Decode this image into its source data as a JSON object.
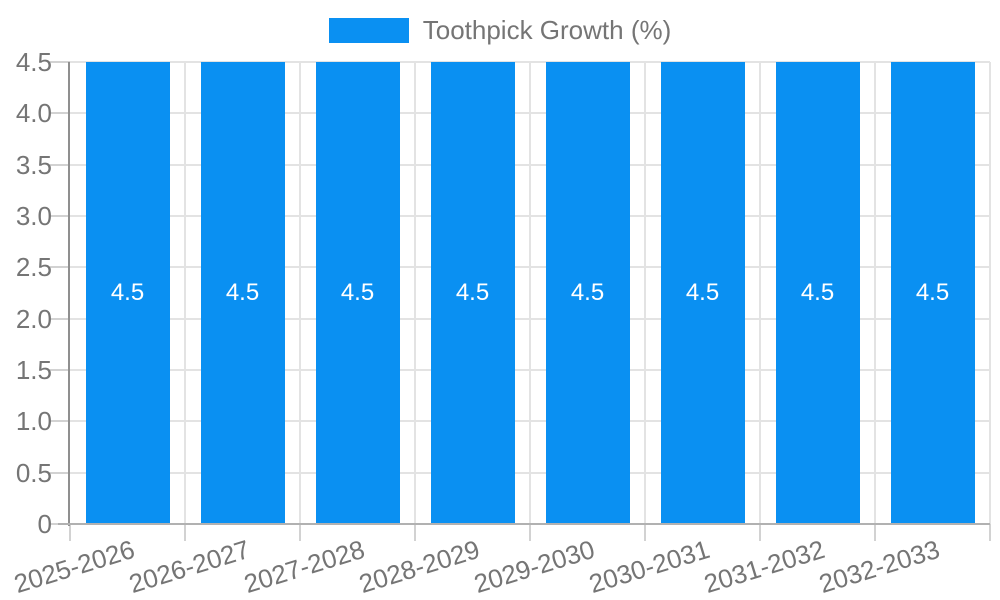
{
  "colors": {
    "bar": "#0a90f2",
    "axis_text": "#757575",
    "grid": "#e3e3e3",
    "value_label": "#ffffff"
  },
  "chart_data": {
    "type": "bar",
    "title": "",
    "legend_label": "Toothpick Growth (%)",
    "legend": [
      "Toothpick Growth (%)"
    ],
    "legend_position": "top",
    "categories": [
      "2025-2026",
      "2026-2027",
      "2027-2028",
      "2028-2029",
      "2029-2030",
      "2030-2031",
      "2031-2032",
      "2032-2033"
    ],
    "series": [
      {
        "name": "Toothpick Growth (%)",
        "values": [
          4.5,
          4.5,
          4.5,
          4.5,
          4.5,
          4.5,
          4.5,
          4.5
        ]
      }
    ],
    "bar_labels": [
      "4.5",
      "4.5",
      "4.5",
      "4.5",
      "4.5",
      "4.5",
      "4.5",
      "4.5"
    ],
    "xlabel": "",
    "ylabel": "",
    "ylim": [
      0,
      4.5
    ],
    "y_ticks": [
      "0",
      "0.5",
      "1.0",
      "1.5",
      "2.0",
      "2.5",
      "3.0",
      "3.5",
      "4.0",
      "4.5"
    ],
    "grid": true
  }
}
